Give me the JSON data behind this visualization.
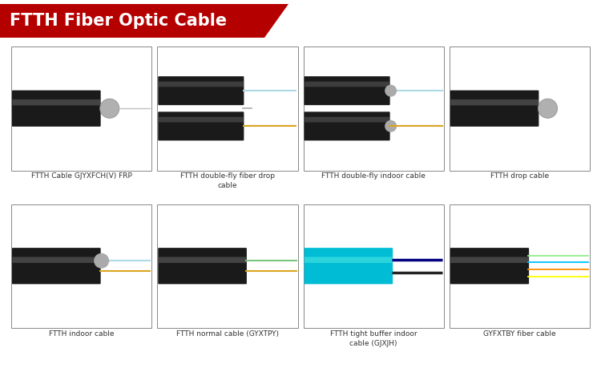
{
  "title": "FTTH Fiber Optic Cable",
  "title_bg_color": "#B50000",
  "title_text_color": "#FFFFFF",
  "background_color": "#FFFFFF",
  "border_color": "#888888",
  "labels_row1": [
    "FTTH Cable GJYXFCH(V) FRP",
    "FTTH double-fly fiber drop\ncable",
    "FTTH double-fly indoor cable",
    "FTTH drop cable"
  ],
  "labels_row2": [
    "FTTH indoor cable",
    "FTTH normal cable (GYXTPY)",
    "FTTH tight buffer indoor\ncable (GJXJH)",
    "GYFXTBY fiber cable"
  ],
  "cable_types_row1": [
    "single_frp",
    "double_fly_drop",
    "double_fly_indoor",
    "drop"
  ],
  "cable_types_row2": [
    "indoor",
    "normal_gyxtpy",
    "tight_buffer",
    "gyfxtby"
  ]
}
